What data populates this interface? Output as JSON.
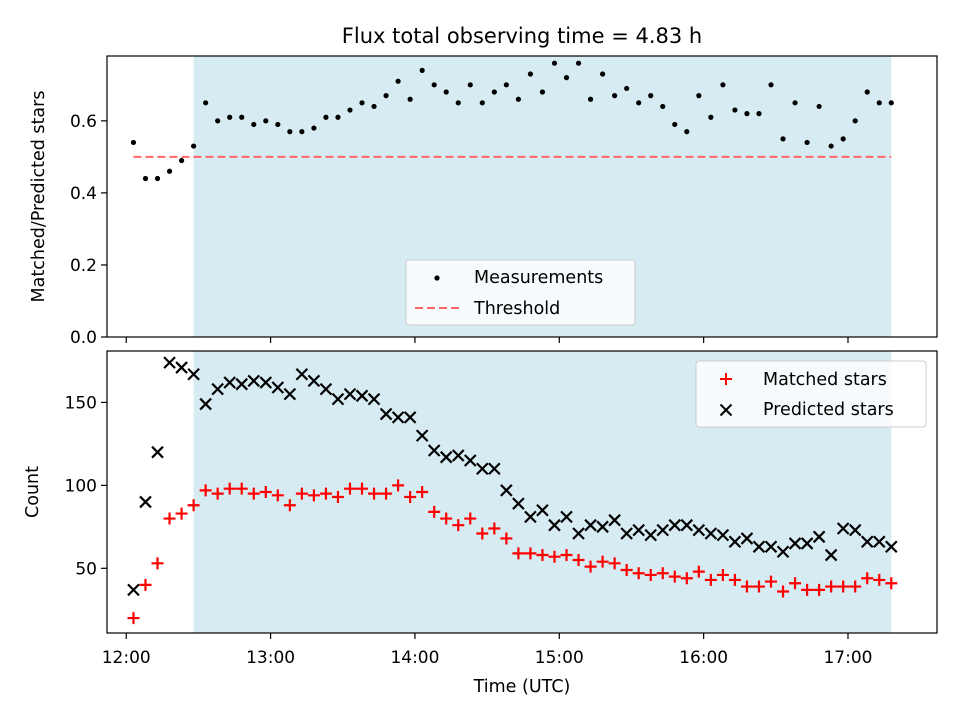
{
  "chart_data": [
    {
      "type": "scatter",
      "title": "Flux total observing time = 4.83 h",
      "xlabel": "",
      "ylabel": "Matched/Predicted stars",
      "xlim": [
        "11:52",
        "17:37"
      ],
      "ylim": [
        0,
        0.78
      ],
      "yticks": [
        "0.0",
        "0.2",
        "0.4",
        "0.6"
      ],
      "shaded_interval": [
        "12:28",
        "17:18"
      ],
      "shade_color": "#add8e6",
      "legend": {
        "placement": "lower-center",
        "entries": [
          "Measurements",
          "Threshold"
        ]
      },
      "threshold": {
        "name": "Threshold",
        "value": 0.5,
        "x": [
          "12:03",
          "17:18"
        ],
        "color": "#ff6666",
        "style": "dashed"
      },
      "series": [
        {
          "name": "Measurements",
          "marker": "dot",
          "color": "#000000",
          "x": [
            "12:03",
            "12:08",
            "12:13",
            "12:18",
            "12:23",
            "12:28",
            "12:33",
            "12:38",
            "12:43",
            "12:48",
            "12:53",
            "12:58",
            "13:03",
            "13:08",
            "13:13",
            "13:18",
            "13:23",
            "13:28",
            "13:33",
            "13:38",
            "13:43",
            "13:48",
            "13:53",
            "13:58",
            "14:03",
            "14:08",
            "14:13",
            "14:18",
            "14:23",
            "14:28",
            "14:33",
            "14:38",
            "14:43",
            "14:48",
            "14:53",
            "14:58",
            "15:03",
            "15:08",
            "15:13",
            "15:18",
            "15:23",
            "15:28",
            "15:33",
            "15:38",
            "15:43",
            "15:48",
            "15:53",
            "15:58",
            "16:03",
            "16:08",
            "16:13",
            "16:18",
            "16:23",
            "16:28",
            "16:33",
            "16:38",
            "16:43",
            "16:48",
            "16:53",
            "16:58",
            "17:03",
            "17:08",
            "17:13",
            "17:18"
          ],
          "y": [
            0.54,
            0.44,
            0.44,
            0.46,
            0.49,
            0.53,
            0.65,
            0.6,
            0.61,
            0.61,
            0.59,
            0.6,
            0.59,
            0.57,
            0.57,
            0.58,
            0.61,
            0.61,
            0.63,
            0.65,
            0.64,
            0.67,
            0.71,
            0.66,
            0.74,
            0.7,
            0.68,
            0.65,
            0.7,
            0.65,
            0.68,
            0.7,
            0.66,
            0.73,
            0.68,
            0.76,
            0.72,
            0.76,
            0.66,
            0.73,
            0.67,
            0.69,
            0.65,
            0.67,
            0.64,
            0.59,
            0.57,
            0.67,
            0.61,
            0.7,
            0.63,
            0.62,
            0.62,
            0.7,
            0.55,
            0.65,
            0.54,
            0.64,
            0.53,
            0.55,
            0.6,
            0.68,
            0.65,
            0.65
          ]
        }
      ]
    },
    {
      "type": "scatter",
      "title": "",
      "xlabel": "Time (UTC)",
      "ylabel": "Count",
      "xlim": [
        "11:52",
        "17:37"
      ],
      "ylim": [
        11,
        181
      ],
      "yticks": [
        "50",
        "100",
        "150"
      ],
      "xticks": [
        "12:00",
        "13:00",
        "14:00",
        "15:00",
        "16:00",
        "17:00"
      ],
      "shaded_interval": [
        "12:28",
        "17:18"
      ],
      "shade_color": "#add8e6",
      "legend": {
        "placement": "top-right",
        "entries": [
          "Matched stars",
          "Predicted stars"
        ]
      },
      "x": [
        "12:03",
        "12:08",
        "12:13",
        "12:18",
        "12:23",
        "12:28",
        "12:33",
        "12:38",
        "12:43",
        "12:48",
        "12:53",
        "12:58",
        "13:03",
        "13:08",
        "13:13",
        "13:18",
        "13:23",
        "13:28",
        "13:33",
        "13:38",
        "13:43",
        "13:48",
        "13:53",
        "13:58",
        "14:03",
        "14:08",
        "14:13",
        "14:18",
        "14:23",
        "14:28",
        "14:33",
        "14:38",
        "14:43",
        "14:48",
        "14:53",
        "14:58",
        "15:03",
        "15:08",
        "15:13",
        "15:18",
        "15:23",
        "15:28",
        "15:33",
        "15:38",
        "15:43",
        "15:48",
        "15:53",
        "15:58",
        "16:03",
        "16:08",
        "16:13",
        "16:18",
        "16:23",
        "16:28",
        "16:33",
        "16:38",
        "16:43",
        "16:48",
        "16:53",
        "16:58",
        "17:03",
        "17:08",
        "17:13",
        "17:18"
      ],
      "series": [
        {
          "name": "Matched stars",
          "marker": "plus",
          "color": "#ff0000",
          "values": [
            20,
            40,
            53,
            80,
            83,
            88,
            97,
            95,
            98,
            98,
            95,
            96,
            94,
            88,
            95,
            94,
            95,
            93,
            98,
            98,
            95,
            95,
            100,
            93,
            96,
            84,
            80,
            76,
            80,
            71,
            74,
            68,
            59,
            59,
            58,
            57,
            58,
            55,
            51,
            54,
            53,
            49,
            47,
            46,
            47,
            45,
            44,
            48,
            43,
            46,
            43,
            39,
            39,
            42,
            36,
            41,
            37,
            37,
            39,
            39,
            39,
            44,
            43,
            41
          ]
        },
        {
          "name": "Predicted stars",
          "marker": "x",
          "color": "#000000",
          "values": [
            37,
            90,
            120,
            174,
            171,
            167,
            149,
            158,
            162,
            161,
            163,
            162,
            159,
            155,
            167,
            163,
            158,
            152,
            155,
            154,
            152,
            143,
            141,
            141,
            130,
            121,
            117,
            118,
            115,
            110,
            110,
            97,
            89,
            81,
            85,
            76,
            81,
            71,
            76,
            75,
            79,
            71,
            73,
            70,
            73,
            76,
            76,
            73,
            71,
            70,
            66,
            68,
            63,
            63,
            60,
            65,
            65,
            69,
            58,
            74,
            73,
            66,
            66,
            63
          ]
        }
      ]
    }
  ]
}
